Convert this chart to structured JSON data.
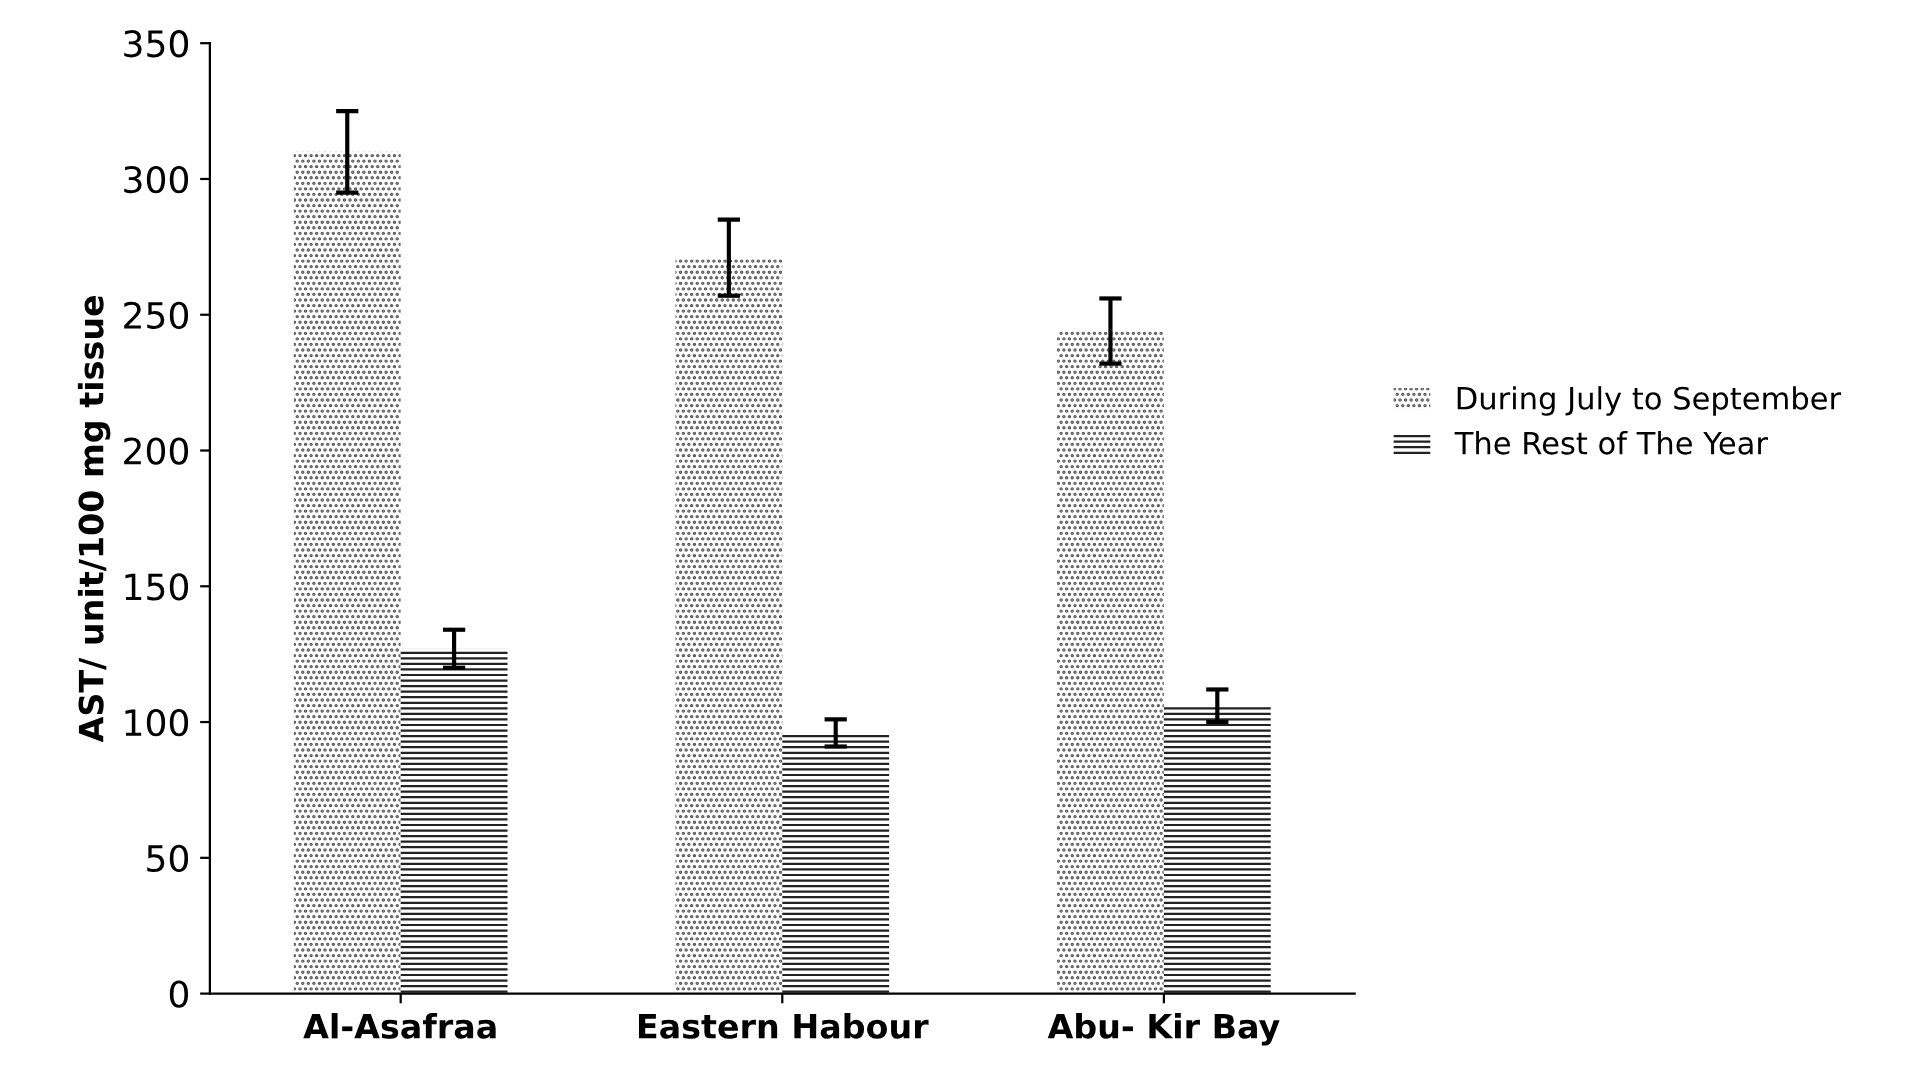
{
  "chart_data": {
    "type": "bar",
    "ylabel": "AST/ unit/100 mg tissue",
    "categories": [
      "Al-Asafraa",
      "Eastern Habour",
      "Abu- Kir Bay"
    ],
    "series": [
      {
        "name": "During July to September",
        "color": "#555555",
        "values": [
          310,
          271,
          244
        ],
        "errors": [
          15,
          14,
          12
        ]
      },
      {
        "name": "The Rest of The Year",
        "color": "#222222",
        "values": [
          127,
          96,
          106
        ],
        "errors": [
          7,
          5,
          6
        ]
      }
    ],
    "ylim": [
      0,
      350
    ],
    "yticks": [
      0,
      50,
      100,
      150,
      200,
      250,
      300,
      350
    ],
    "grid": false,
    "legend": "right"
  }
}
